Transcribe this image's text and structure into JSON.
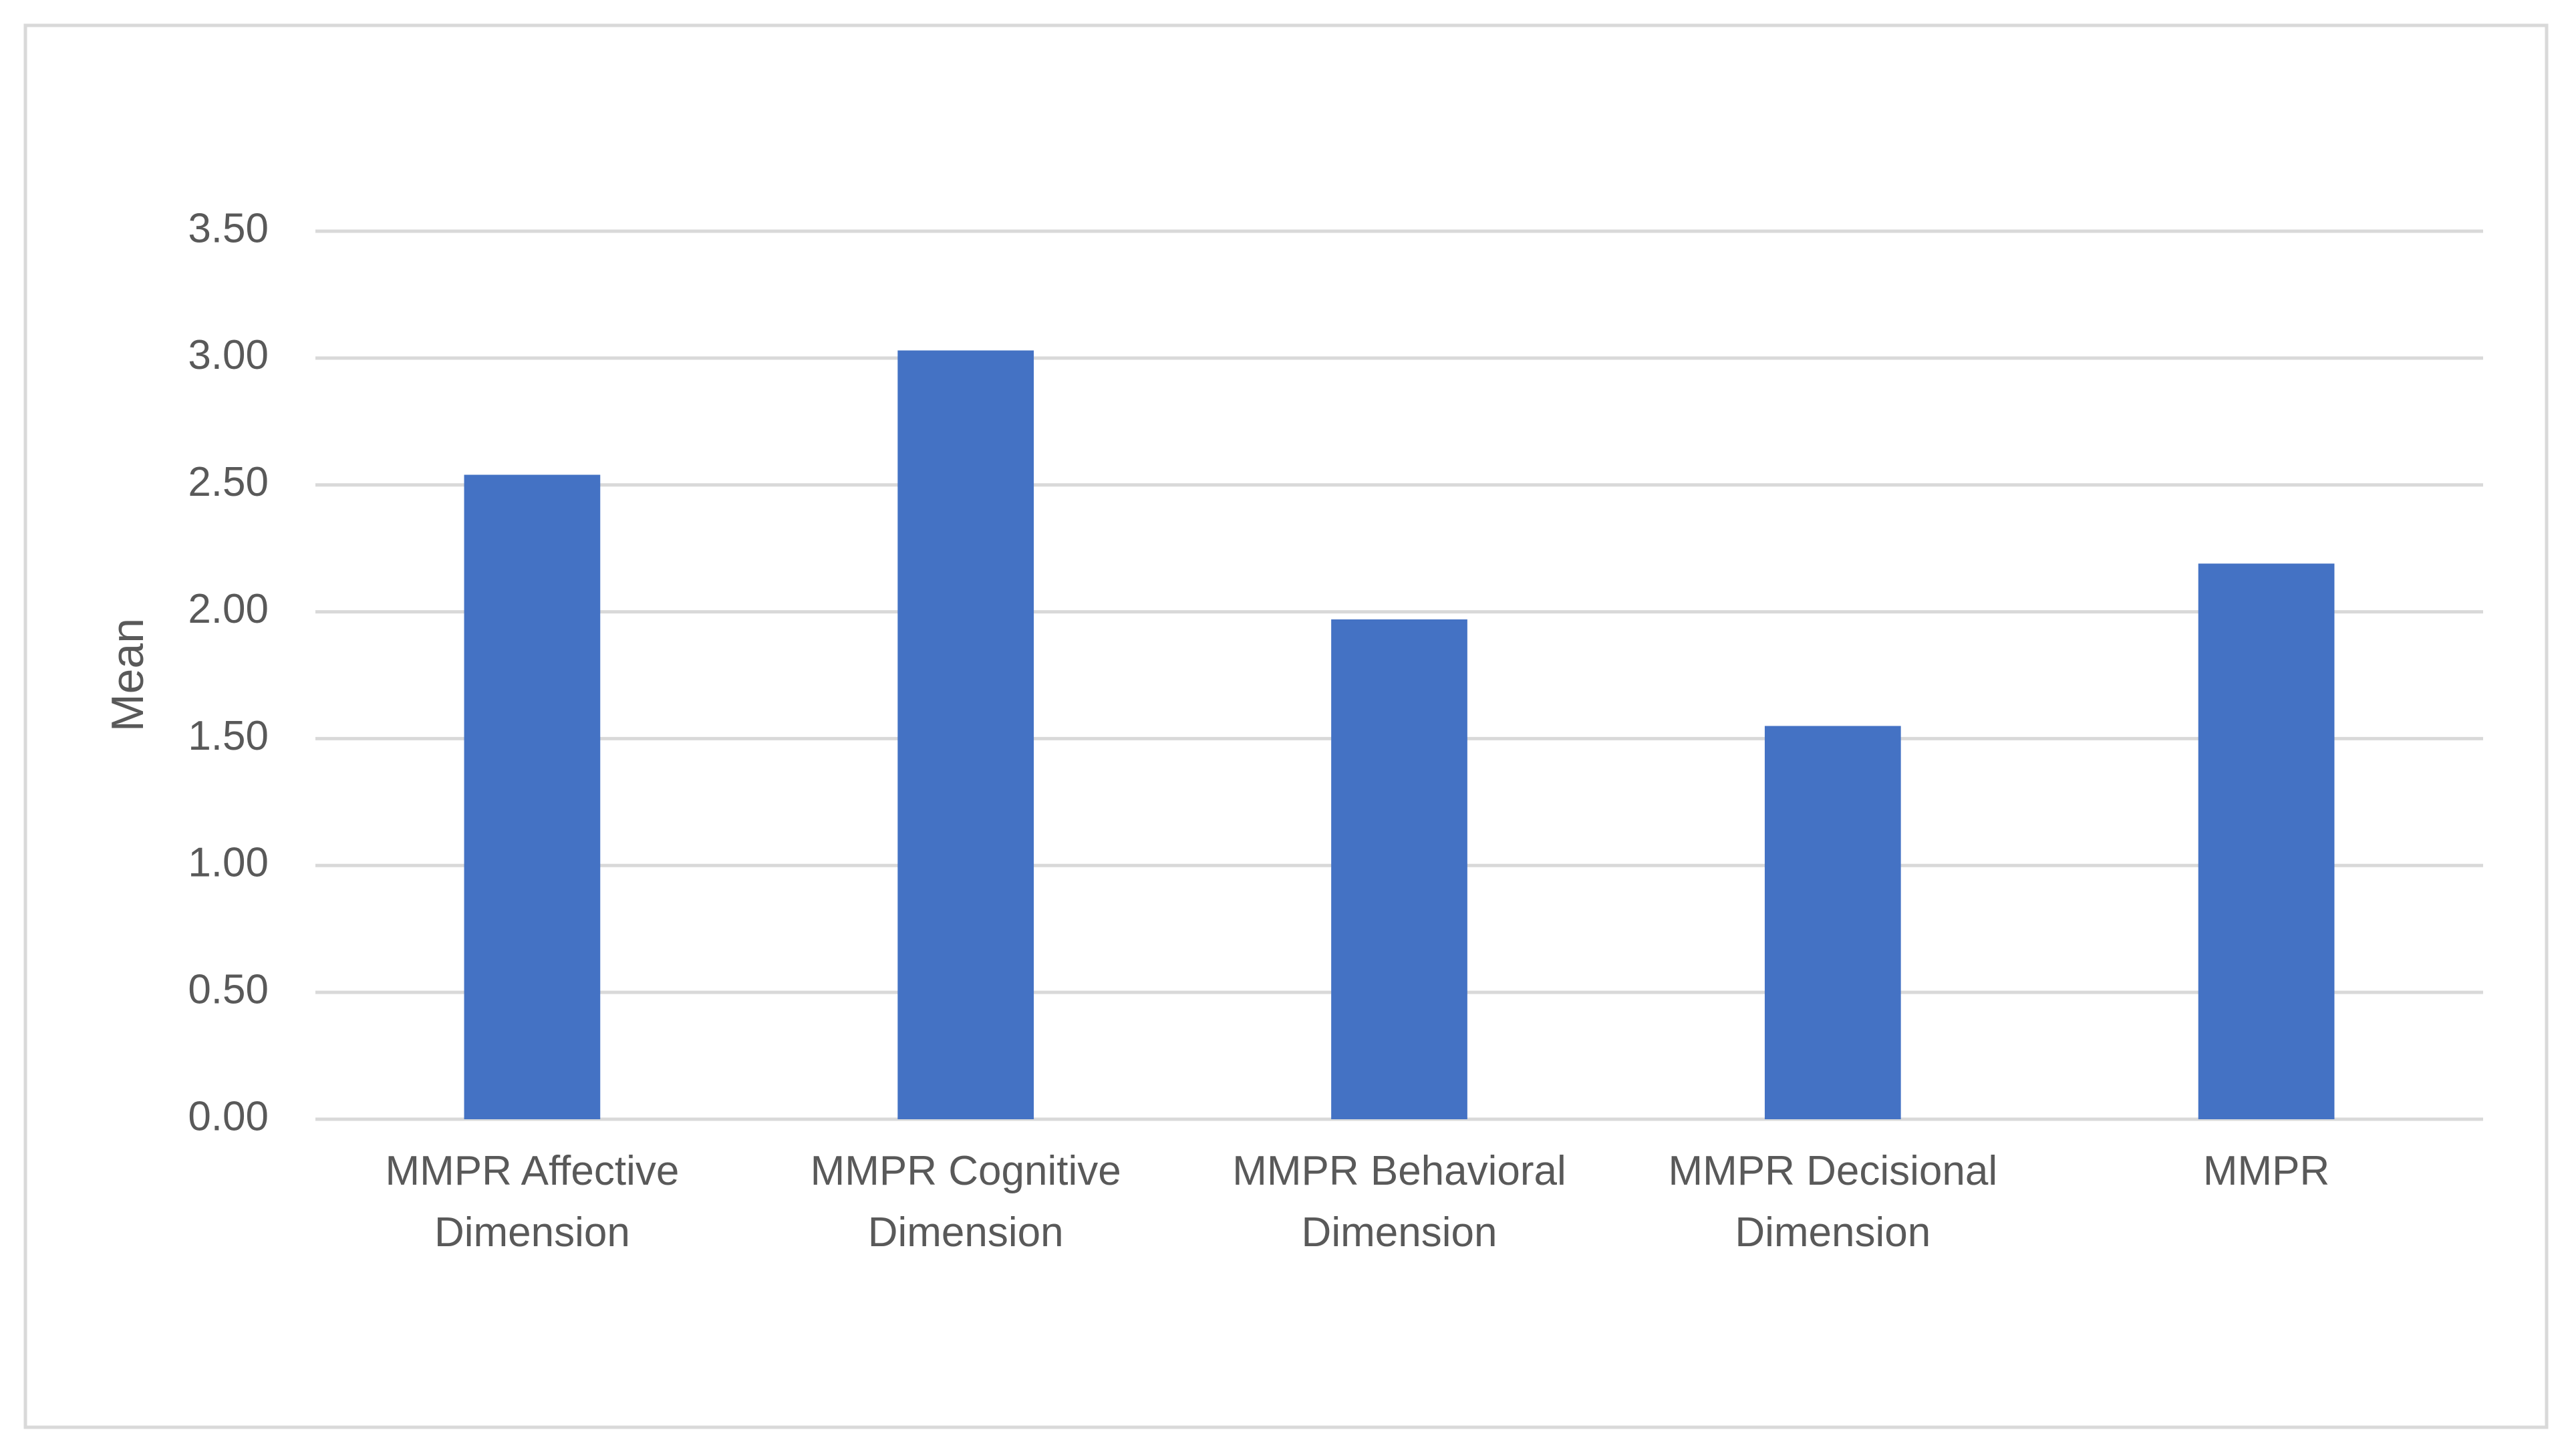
{
  "chart_data": {
    "type": "bar",
    "y_label": "Mean",
    "categories": [
      "MMPR Affective Dimension",
      "MMPR Cognitive Dimension",
      "MMPR Behavioral Dimension",
      "MMPR Decisional Dimension",
      "MMPR"
    ],
    "values": [
      2.54,
      3.03,
      1.97,
      1.55,
      2.19
    ],
    "color": "#4472c4",
    "ylim": [
      0,
      3.5
    ],
    "yticks": [
      {
        "value": 0,
        "label": "0.00"
      },
      {
        "value": 0.5,
        "label": "0.50"
      },
      {
        "value": 1,
        "label": "1.00"
      },
      {
        "value": 1.5,
        "label": "1.50"
      },
      {
        "value": 2,
        "label": "2.00"
      },
      {
        "value": 2.5,
        "label": "2.50"
      },
      {
        "value": 3,
        "label": "3.00"
      },
      {
        "value": 3.5,
        "label": "3.50"
      }
    ],
    "grid": true
  }
}
